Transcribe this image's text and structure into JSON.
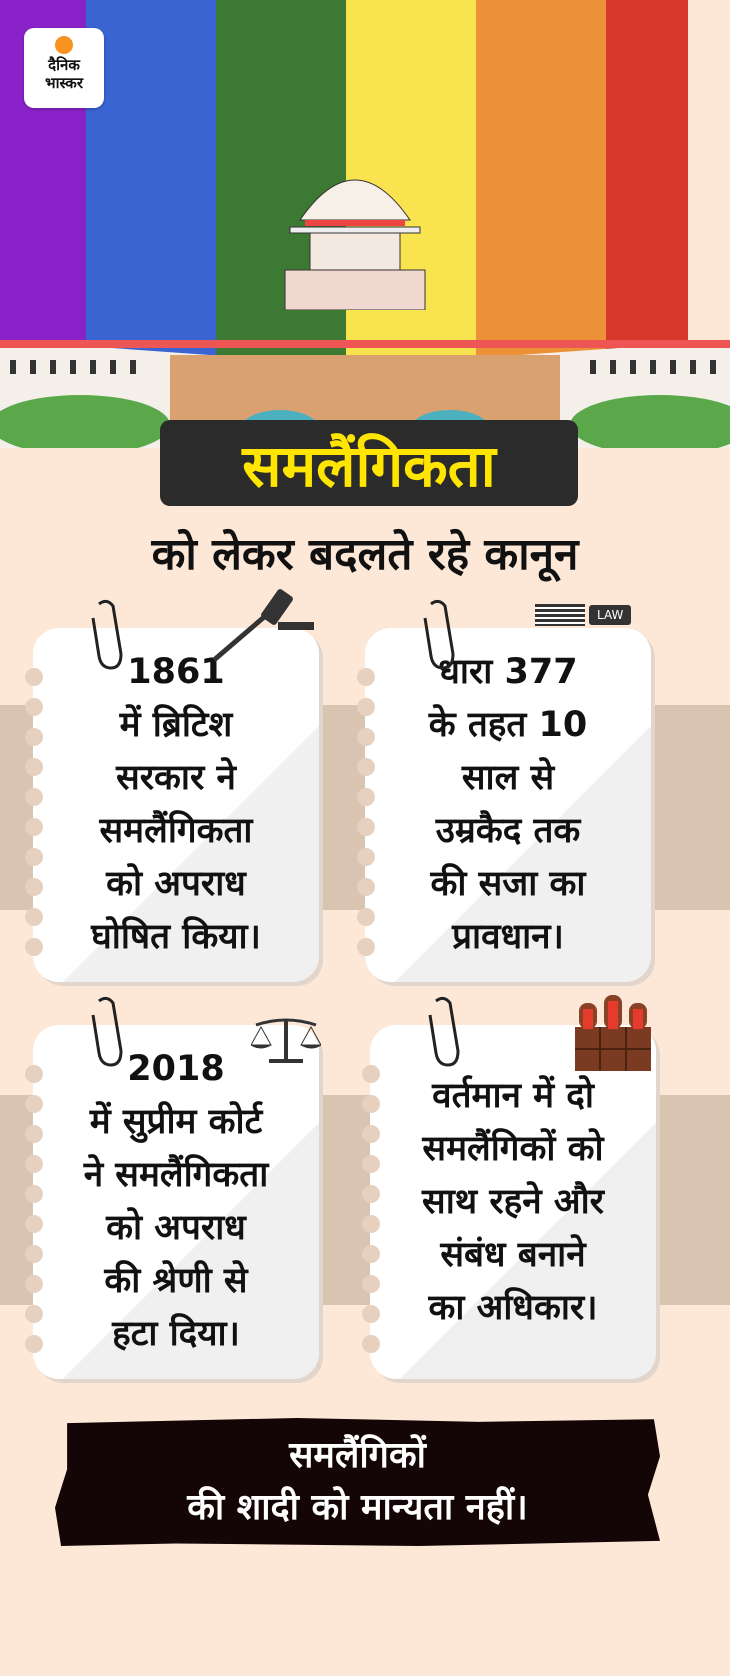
{
  "brand": {
    "logo_line1": "दैनिक",
    "logo_line2": "भास्कर"
  },
  "colors": {
    "purple": "#8a22c9",
    "blue": "#3a64d2",
    "green": "#3c7a34",
    "yellow": "#f9e44f",
    "orange": "#ec9138",
    "red": "#d8382b",
    "title_text": "#ffe500",
    "title_bg": "#2b2b2b"
  },
  "header": {
    "title": "समलैंगिकता",
    "subtitle": "को लेकर बदलते रहे कानून"
  },
  "cards": [
    {
      "icon": "gavel-icon",
      "lines": [
        "1861",
        "में ब्रिटिश",
        "सरकार ने",
        "समलैंगिकता",
        "को अपराध",
        "घोषित किया।"
      ]
    },
    {
      "icon": "law-books-icon",
      "badge": "LAW",
      "lines": [
        "धारा 377",
        "के तहत 10",
        "साल से",
        "उम्रकैद तक",
        "की सजा का",
        "प्रावधान।"
      ]
    },
    {
      "icon": "scales-of-justice-icon",
      "lines": [
        "2018",
        "में सुप्रीम कोर्ट",
        "ने समलैंगिकता",
        "को अपराध",
        "की श्रेणी से",
        "हटा दिया।"
      ]
    },
    {
      "icon": "court-bench-icon",
      "lines": [
        "वर्तमान में दो",
        "समलैंगिकों को",
        "साथ रहने और",
        "संबंध बनाने",
        "का अधिकार।"
      ]
    }
  ],
  "footer": {
    "line1": "समलैंगिकों",
    "line2": "की शादी को मान्यता नहीं।"
  }
}
